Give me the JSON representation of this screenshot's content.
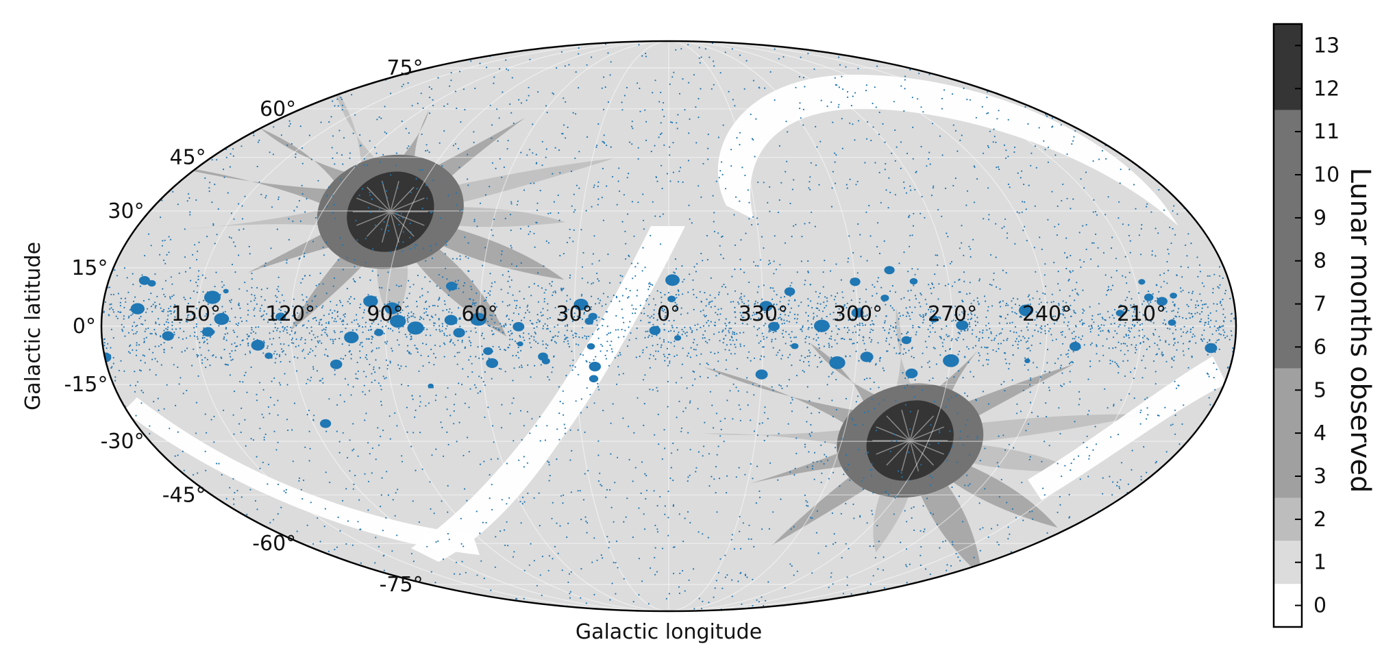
{
  "chart_data": {
    "type": "heatmap",
    "projection": "mollweide",
    "xlabel": "Galactic longitude",
    "ylabel": "Galactic latitude",
    "longitude_tick_labels": [
      "150°",
      "120°",
      "90°",
      "60°",
      "30°",
      "0°",
      "330°",
      "300°",
      "270°",
      "240°",
      "210°"
    ],
    "longitude_ticks": [
      150,
      120,
      90,
      60,
      30,
      0,
      330,
      300,
      270,
      240,
      210
    ],
    "latitude_tick_labels": [
      "75°",
      "60°",
      "45°",
      "30°",
      "15°",
      "0°",
      "-15°",
      "-30°",
      "-45°",
      "-60°",
      "-75°"
    ],
    "latitude_ticks": [
      75,
      60,
      45,
      30,
      15,
      0,
      -15,
      -30,
      -45,
      -60,
      -75
    ],
    "grid": true,
    "colorbar": {
      "label": "Lunar months observed",
      "tick_labels": [
        "0",
        "1",
        "2",
        "3",
        "4",
        "5",
        "6",
        "7",
        "8",
        "9",
        "10",
        "11",
        "12",
        "13"
      ],
      "ticks": [
        0,
        1,
        2,
        3,
        4,
        5,
        6,
        7,
        8,
        9,
        10,
        11,
        12,
        13
      ],
      "range": [
        -0.5,
        13.5
      ],
      "bands": [
        {
          "from": -0.5,
          "to": 0.5,
          "color": "#ffffff"
        },
        {
          "from": 0.5,
          "to": 1.5,
          "color": "#dcdcdc"
        },
        {
          "from": 1.5,
          "to": 2.5,
          "color": "#bdbdbd"
        },
        {
          "from": 2.5,
          "to": 5.5,
          "color": "#a0a0a0"
        },
        {
          "from": 5.5,
          "to": 11.5,
          "color": "#737373"
        },
        {
          "from": 11.5,
          "to": 13.5,
          "color": "#353535"
        }
      ]
    },
    "ecliptic_poles": [
      {
        "l": 96.4,
        "b": 29.8
      },
      {
        "l": 276.4,
        "b": -29.8
      }
    ],
    "sources": {
      "color": "#1f77b4",
      "concentrated_near_b": 0
    }
  }
}
